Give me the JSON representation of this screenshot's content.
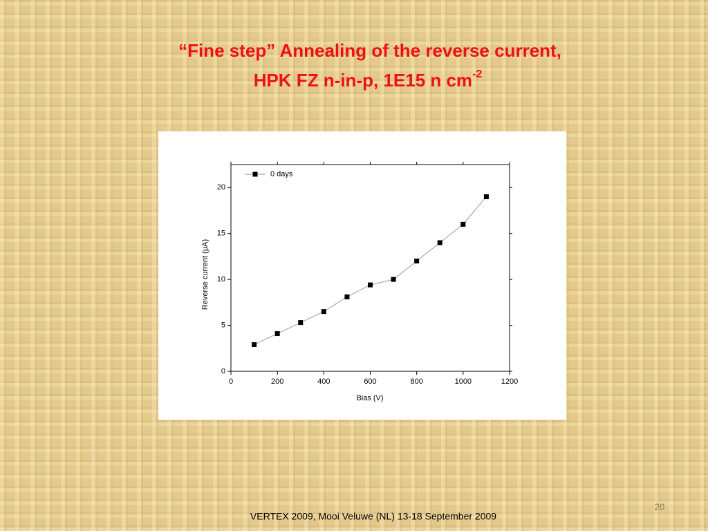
{
  "slide": {
    "title_line1": "“Fine step” Annealing of the reverse current,",
    "title_line2": "HPK FZ n-in-p, 1E15 n cm",
    "title_superscript": "-2",
    "footer": "VERTEX 2009, Mooi Veluwe (NL) 13-18 September 2009",
    "page_number": "20"
  },
  "chart_data": {
    "type": "line",
    "x_label": "Bias (V)",
    "y_label": "Reverse current (μA)",
    "x": [
      100,
      200,
      300,
      400,
      500,
      600,
      700,
      800,
      900,
      1000,
      1100
    ],
    "series": [
      {
        "name": "0 days",
        "color": "#000000",
        "line_color": "#999999",
        "values": [
          2.9,
          4.1,
          5.3,
          6.5,
          8.1,
          9.4,
          10.0,
          12.0,
          14.0,
          16.0,
          19.0
        ]
      }
    ],
    "xlim": [
      0,
      1200
    ],
    "xticks": [
      0,
      200,
      400,
      600,
      800,
      1000,
      1200
    ],
    "ylim": [
      0,
      22.5
    ],
    "yticks": [
      0,
      5,
      10,
      15,
      20
    ],
    "legend": "upper left",
    "grid": false
  }
}
